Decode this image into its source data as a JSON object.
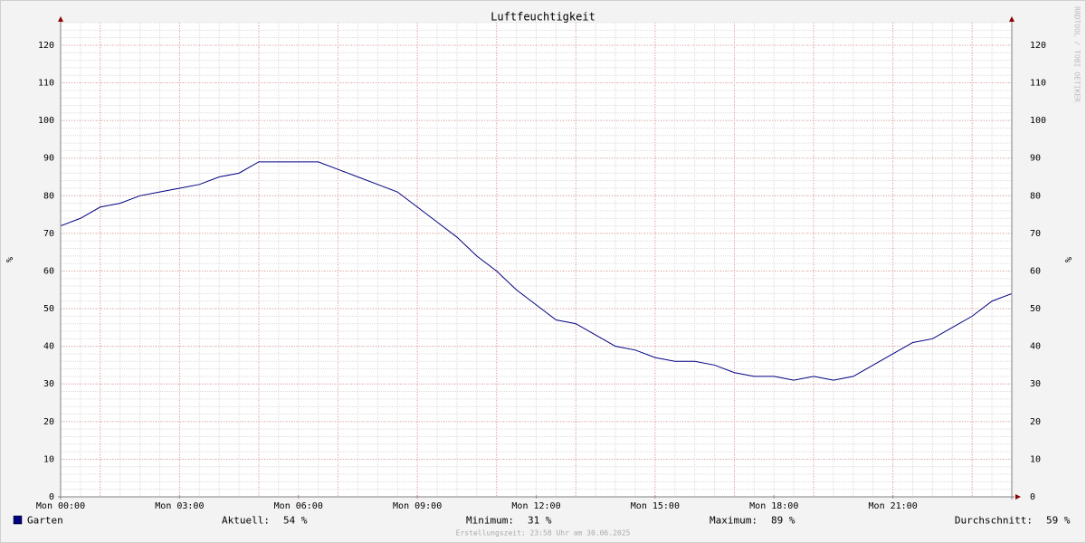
{
  "chart_data": {
    "type": "line",
    "title": "Luftfeuchtigkeit",
    "ylabel": "%",
    "watermark": "RRDTOOL / TOBI OETIKER",
    "x": [
      0,
      0.5,
      1,
      1.5,
      2,
      2.5,
      3,
      3.5,
      4,
      4.5,
      5,
      5.5,
      6,
      6.5,
      7,
      7.5,
      8,
      8.5,
      9,
      9.5,
      10,
      10.5,
      11,
      11.5,
      12,
      12.5,
      13,
      13.5,
      14,
      14.5,
      15,
      15.5,
      16,
      16.5,
      17,
      17.5,
      18,
      18.5,
      19,
      19.5,
      20,
      20.5,
      21,
      21.5,
      22,
      22.5,
      23,
      23.5,
      24
    ],
    "series": [
      {
        "name": "Garten",
        "color": "#000080",
        "values": [
          72,
          74,
          77,
          78,
          80,
          81,
          82,
          83,
          85,
          86,
          89,
          89,
          89,
          89,
          87,
          85,
          83,
          81,
          77,
          73,
          69,
          64,
          60,
          55,
          51,
          47,
          46,
          43,
          40,
          39,
          37,
          36,
          36,
          35,
          33,
          32,
          32,
          31,
          32,
          31,
          32,
          35,
          38,
          41,
          42,
          45,
          48,
          52,
          54
        ]
      }
    ],
    "xlim": [
      0,
      24
    ],
    "xticks": [
      {
        "value": 0,
        "label": "Mon 00:00"
      },
      {
        "value": 3,
        "label": "Mon 03:00"
      },
      {
        "value": 6,
        "label": "Mon 06:00"
      },
      {
        "value": 9,
        "label": "Mon 09:00"
      },
      {
        "value": 12,
        "label": "Mon 12:00"
      },
      {
        "value": 15,
        "label": "Mon 15:00"
      },
      {
        "value": 18,
        "label": "Mon 18:00"
      },
      {
        "value": 21,
        "label": "Mon 21:00"
      }
    ],
    "ylim": [
      0,
      126
    ],
    "yticks": [
      0,
      10,
      20,
      30,
      40,
      50,
      60,
      70,
      80,
      90,
      100,
      110,
      120
    ],
    "grid": true,
    "stats": [
      {
        "label": "Aktuell:",
        "value": "54 %"
      },
      {
        "label": "Minimum:",
        "value": "31 %"
      },
      {
        "label": "Maximum:",
        "value": "89 %"
      },
      {
        "label": "Durchschnitt:",
        "value": "59 %"
      }
    ],
    "footer": "Erstellungszeit: 23:58 Uhr am 30.06.2025"
  }
}
